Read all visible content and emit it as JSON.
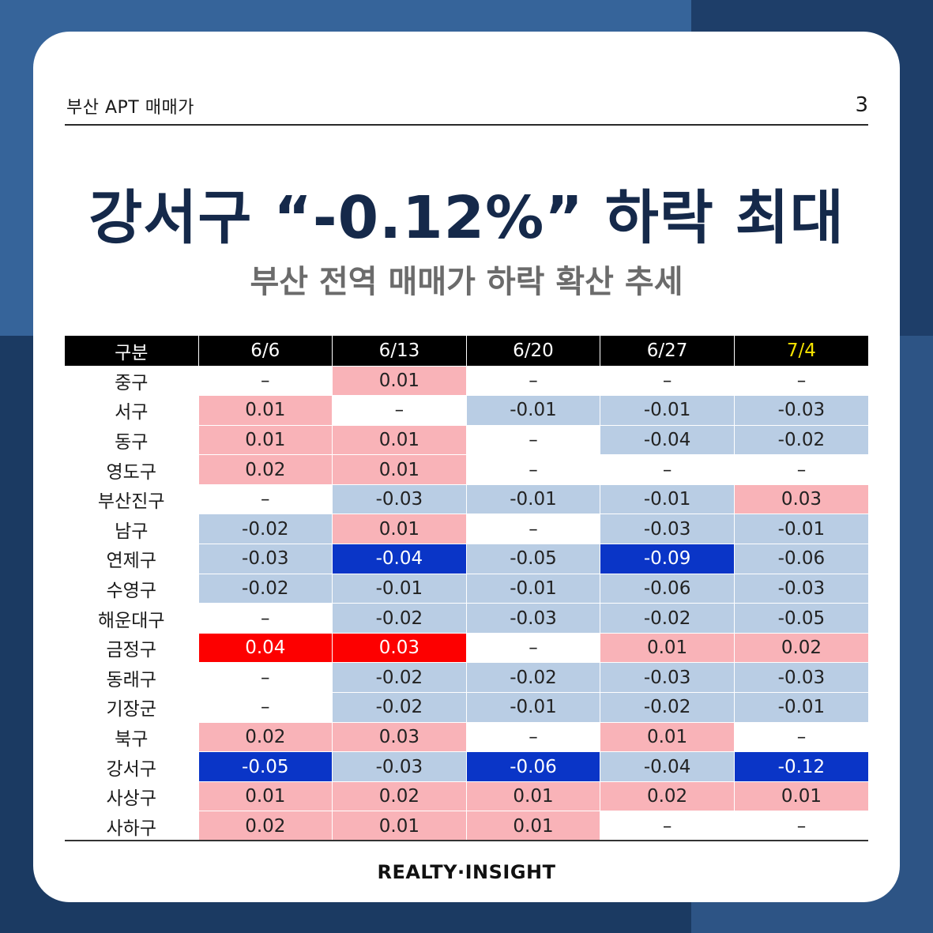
{
  "header": {
    "label": "부산 APT 매매가",
    "page_number": "3"
  },
  "title": "강서구 “-0.12%” 하락 최대",
  "subtitle": "부산 전역 매매가 하락 확산 추세",
  "brand": "REALTY·INSIGHT",
  "colors": {
    "mild_up": "#f9b3b8",
    "strong_up": "#fd0000",
    "mild_down": "#b9cde4",
    "strong_down": "#0a35c7",
    "no_change": "#ffffff",
    "header_bg": "#000000",
    "highlight_header": "#f5e300"
  },
  "table": {
    "columns": [
      "구분",
      "6/6",
      "6/13",
      "6/20",
      "6/27",
      "7/4"
    ],
    "rows": [
      {
        "district": "중구",
        "values": [
          "–",
          "0.01",
          "–",
          "–",
          "–"
        ],
        "levels": [
          "z",
          "p1",
          "z",
          "z",
          "z"
        ]
      },
      {
        "district": "서구",
        "values": [
          "0.01",
          "–",
          "-0.01",
          "-0.01",
          "-0.03"
        ],
        "levels": [
          "p1",
          "z",
          "n1",
          "n1",
          "n1"
        ]
      },
      {
        "district": "동구",
        "values": [
          "0.01",
          "0.01",
          "–",
          "-0.04",
          "-0.02"
        ],
        "levels": [
          "p1",
          "p1",
          "z",
          "n1",
          "n1"
        ]
      },
      {
        "district": "영도구",
        "values": [
          "0.02",
          "0.01",
          "–",
          "–",
          "–"
        ],
        "levels": [
          "p1",
          "p1",
          "z",
          "z",
          "z"
        ]
      },
      {
        "district": "부산진구",
        "values": [
          "–",
          "-0.03",
          "-0.01",
          "-0.01",
          "0.03"
        ],
        "levels": [
          "z",
          "n1",
          "n1",
          "n1",
          "p1"
        ]
      },
      {
        "district": "남구",
        "values": [
          "-0.02",
          "0.01",
          "–",
          "-0.03",
          "-0.01"
        ],
        "levels": [
          "n1",
          "p1",
          "z",
          "n1",
          "n1"
        ]
      },
      {
        "district": "연제구",
        "values": [
          "-0.03",
          "-0.04",
          "-0.05",
          "-0.09",
          "-0.06"
        ],
        "levels": [
          "n1",
          "n2",
          "n1",
          "n2",
          "n1"
        ]
      },
      {
        "district": "수영구",
        "values": [
          "-0.02",
          "-0.01",
          "-0.01",
          "-0.06",
          "-0.03"
        ],
        "levels": [
          "n1",
          "n1",
          "n1",
          "n1",
          "n1"
        ]
      },
      {
        "district": "해운대구",
        "values": [
          "–",
          "-0.02",
          "-0.03",
          "-0.02",
          "-0.05"
        ],
        "levels": [
          "z",
          "n1",
          "n1",
          "n1",
          "n1"
        ]
      },
      {
        "district": "금정구",
        "values": [
          "0.04",
          "0.03",
          "–",
          "0.01",
          "0.02"
        ],
        "levels": [
          "p2",
          "p2",
          "z",
          "p1",
          "p1"
        ]
      },
      {
        "district": "동래구",
        "values": [
          "–",
          "-0.02",
          "-0.02",
          "-0.03",
          "-0.03"
        ],
        "levels": [
          "z",
          "n1",
          "n1",
          "n1",
          "n1"
        ]
      },
      {
        "district": "기장군",
        "values": [
          "–",
          "-0.02",
          "-0.01",
          "-0.02",
          "-0.01"
        ],
        "levels": [
          "z",
          "n1",
          "n1",
          "n1",
          "n1"
        ]
      },
      {
        "district": "북구",
        "values": [
          "0.02",
          "0.03",
          "–",
          "0.01",
          "–"
        ],
        "levels": [
          "p1",
          "p1",
          "z",
          "p1",
          "z"
        ]
      },
      {
        "district": "강서구",
        "values": [
          "-0.05",
          "-0.03",
          "-0.06",
          "-0.04",
          "-0.12"
        ],
        "levels": [
          "n2",
          "n1",
          "n2",
          "n1",
          "n2"
        ]
      },
      {
        "district": "사상구",
        "values": [
          "0.01",
          "0.02",
          "0.01",
          "0.02",
          "0.01"
        ],
        "levels": [
          "p1",
          "p1",
          "p1",
          "p1",
          "p1"
        ]
      },
      {
        "district": "사하구",
        "values": [
          "0.02",
          "0.01",
          "0.01",
          "–",
          "–"
        ],
        "levels": [
          "p1",
          "p1",
          "p1",
          "z",
          "z"
        ]
      }
    ]
  }
}
